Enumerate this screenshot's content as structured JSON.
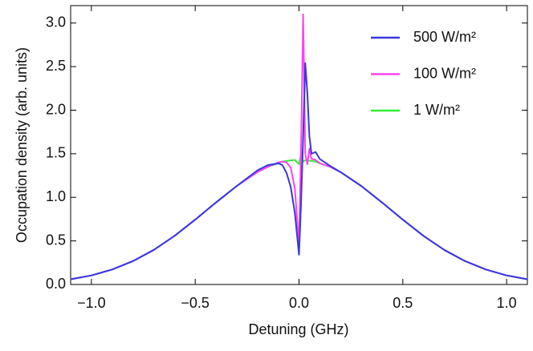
{
  "chart_data": {
    "type": "line",
    "xlabel": "Detuning (GHz)",
    "ylabel": "Occupation density (arb. units)",
    "x": [
      -1.1,
      -1.0,
      -0.9,
      -0.8,
      -0.7,
      -0.6,
      -0.5,
      -0.4,
      -0.3,
      -0.2,
      -0.15,
      -0.1,
      -0.08,
      -0.06,
      -0.04,
      -0.02,
      0,
      0.01,
      0.02,
      0.03,
      0.04,
      0.05,
      0.06,
      0.08,
      0.1,
      0.15,
      0.2,
      0.3,
      0.4,
      0.5,
      0.6,
      0.7,
      0.8,
      0.9,
      1.0,
      1.1
    ],
    "series": [
      {
        "name": "500 W/m²",
        "color": "#3838e0",
        "values": [
          0.06,
          0.104,
          0.172,
          0.268,
          0.396,
          0.557,
          0.744,
          0.941,
          1.13,
          1.31,
          1.37,
          1.39,
          1.37,
          1.28,
          1.12,
          0.82,
          0.34,
          0.95,
          1.7,
          2.54,
          2.2,
          1.7,
          1.5,
          1.52,
          1.44,
          1.36,
          1.29,
          1.13,
          0.941,
          0.744,
          0.557,
          0.396,
          0.268,
          0.172,
          0.104,
          0.06
        ]
      },
      {
        "name": "100 W/m²",
        "color": "#ff44ee",
        "values": [
          0.06,
          0.104,
          0.172,
          0.268,
          0.396,
          0.557,
          0.744,
          0.941,
          1.13,
          1.29,
          1.35,
          1.4,
          1.41,
          1.4,
          1.34,
          1.1,
          0.45,
          1.6,
          3.1,
          1.5,
          1.38,
          1.56,
          1.44,
          1.43,
          1.39,
          1.35,
          1.29,
          1.13,
          0.941,
          0.744,
          0.557,
          0.396,
          0.268,
          0.172,
          0.104,
          0.06
        ]
      },
      {
        "name": "1 W/m²",
        "color": "#33ee33",
        "values": [
          0.06,
          0.104,
          0.172,
          0.268,
          0.396,
          0.557,
          0.744,
          0.941,
          1.13,
          1.29,
          1.35,
          1.39,
          1.41,
          1.417,
          1.424,
          1.429,
          1.38,
          1.5,
          1.41,
          1.427,
          1.424,
          1.421,
          1.417,
          1.41,
          1.39,
          1.35,
          1.29,
          1.13,
          0.941,
          0.744,
          0.557,
          0.396,
          0.268,
          0.172,
          0.104,
          0.06
        ]
      }
    ],
    "xlim": [
      -1.1,
      1.1
    ],
    "xticks": [
      {
        "value": -1.0,
        "label": "−1.0"
      },
      {
        "value": -0.5,
        "label": "−0.5"
      },
      {
        "value": 0,
        "label": "0.0"
      },
      {
        "value": 0.5,
        "label": "0.5"
      },
      {
        "value": 1.0,
        "label": "1.0"
      }
    ],
    "ylim": [
      0,
      3.2
    ],
    "yticks": [
      {
        "value": 0,
        "label": "0.0"
      },
      {
        "value": 0.5,
        "label": "0.5"
      },
      {
        "value": 1.0,
        "label": "1.0"
      },
      {
        "value": 1.5,
        "label": "1.5"
      },
      {
        "value": 2.0,
        "label": "2.0"
      },
      {
        "value": 2.5,
        "label": "2.5"
      },
      {
        "value": 3.0,
        "label": "3.0"
      }
    ],
    "legend": "upper right"
  }
}
